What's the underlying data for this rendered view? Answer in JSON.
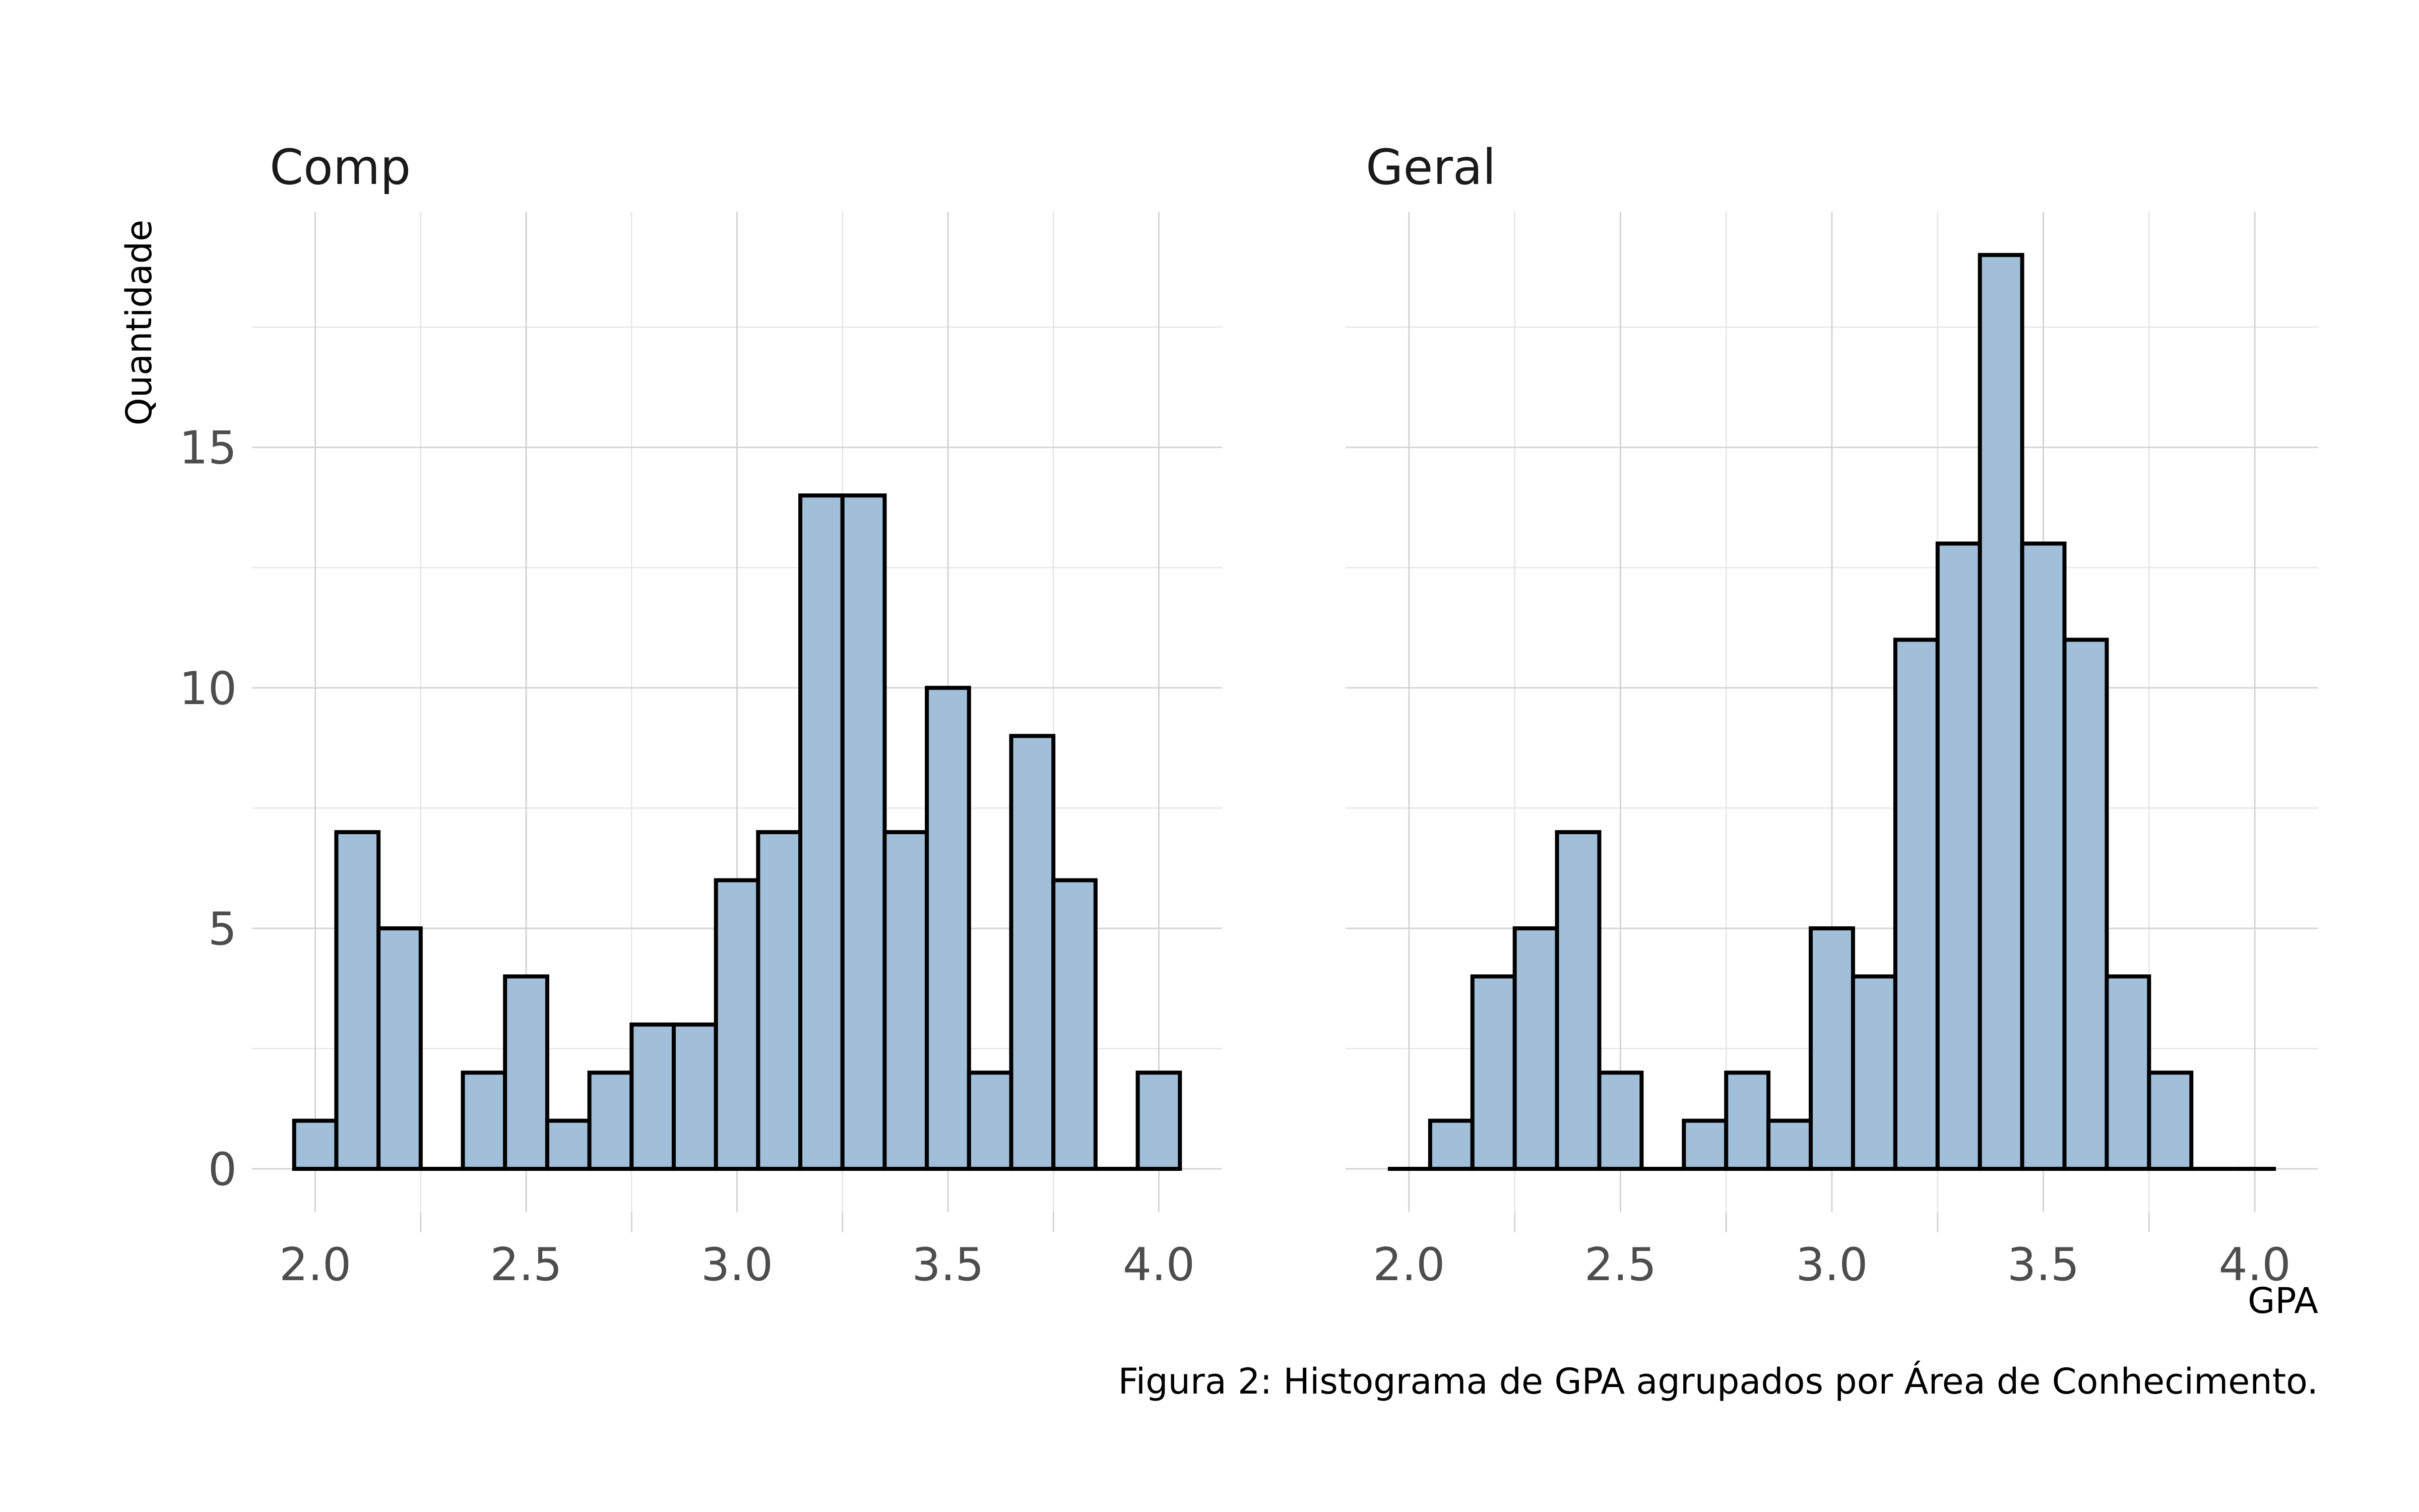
{
  "figure": {
    "caption": "Figura 2: Histograma de GPA agrupados por Área de Conhecimento.",
    "ylabel": "Quantidade",
    "xlabel": "GPA"
  },
  "chart_data": [
    {
      "type": "bar",
      "title": "Comp",
      "xlabel": "",
      "ylabel": "Quantidade",
      "bin_width": 0.1,
      "bin_centers": [
        2.0,
        2.1,
        2.2,
        2.3,
        2.4,
        2.5,
        2.6,
        2.7,
        2.8,
        2.9,
        3.0,
        3.1,
        3.2,
        3.3,
        3.4,
        3.5,
        3.6,
        3.7,
        3.8,
        3.9,
        4.0
      ],
      "values": [
        1,
        7,
        5,
        0,
        2,
        4,
        1,
        2,
        3,
        3,
        6,
        7,
        14,
        14,
        7,
        10,
        2,
        9,
        6,
        0,
        2
      ],
      "xlim": [
        1.85,
        4.15
      ],
      "ylim": [
        -0.9,
        19.9
      ],
      "xticks": [
        "2.0",
        "2.5",
        "3.0",
        "3.5",
        "4.0"
      ],
      "yticks": [
        "0",
        "5",
        "10",
        "15"
      ],
      "grid": true
    },
    {
      "type": "bar",
      "title": "Geral",
      "xlabel": "GPA",
      "ylabel": "",
      "bin_width": 0.1,
      "bin_centers": [
        2.0,
        2.1,
        2.2,
        2.3,
        2.4,
        2.5,
        2.6,
        2.7,
        2.8,
        2.9,
        3.0,
        3.1,
        3.2,
        3.3,
        3.4,
        3.5,
        3.6,
        3.7,
        3.8,
        3.9,
        4.0
      ],
      "values": [
        0,
        1,
        4,
        5,
        7,
        2,
        0,
        1,
        2,
        1,
        5,
        4,
        11,
        13,
        19,
        13,
        11,
        4,
        2,
        0,
        0
      ],
      "xlim": [
        1.85,
        4.15
      ],
      "ylim": [
        -0.9,
        19.9
      ],
      "xticks": [
        "2.0",
        "2.5",
        "3.0",
        "3.5",
        "4.0"
      ],
      "yticks": [],
      "grid": true
    }
  ]
}
